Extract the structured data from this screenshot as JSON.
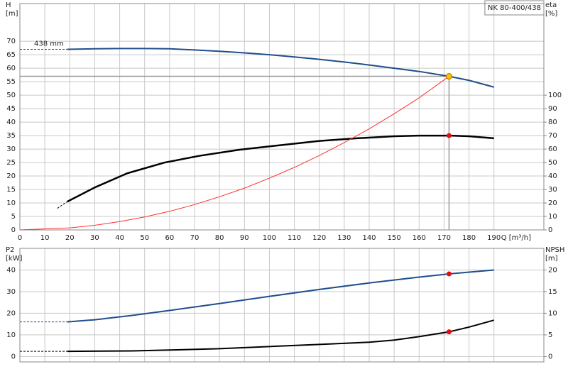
{
  "chart_data": [
    {
      "type": "line",
      "title": "NK 80-400/438",
      "ylabel": "H",
      "yunit": "[m]",
      "y2label": "eta",
      "y2unit": "[%]",
      "xlabel": "Q [m³/h]",
      "annotation": "438 mm",
      "xlim": [
        0,
        210
      ],
      "xticks": [
        0,
        10,
        20,
        30,
        40,
        50,
        60,
        70,
        80,
        90,
        100,
        110,
        120,
        130,
        140,
        150,
        160,
        170,
        180,
        190
      ],
      "ylim": [
        0,
        84
      ],
      "yticks": [
        0,
        5,
        10,
        15,
        20,
        25,
        30,
        35,
        40,
        45,
        50,
        55,
        60,
        65,
        70
      ],
      "y2lim": [
        0,
        168
      ],
      "y2ticks": [
        0,
        10,
        20,
        30,
        40,
        50,
        60,
        70,
        80,
        90,
        100
      ],
      "show_xtick_labels": true,
      "series": [
        {
          "color": "#1f4e8c",
          "width": 2,
          "x": [
            19,
            30,
            40,
            50,
            60,
            70,
            80,
            90,
            100,
            110,
            120,
            130,
            140,
            150,
            160,
            172,
            180,
            190
          ],
          "values": [
            67,
            67.2,
            67.3,
            67.3,
            67.2,
            66.8,
            66.3,
            65.7,
            65,
            64.2,
            63.3,
            62.3,
            61.2,
            60,
            58.8,
            57,
            55.5,
            53
          ]
        },
        {
          "color": "#1f4e8c",
          "width": 1,
          "dash": true,
          "x": [
            0,
            19
          ],
          "values": [
            67,
            67
          ]
        },
        {
          "color": "#000000",
          "width": 2.5,
          "axis": "y2",
          "x": [
            19,
            30,
            43,
            58,
            72,
            88,
            105,
            120,
            135,
            150,
            160,
            172,
            180,
            190
          ],
          "values": [
            21,
            31.5,
            42,
            50,
            55,
            59.5,
            63,
            66,
            68,
            69.5,
            70,
            70,
            69.5,
            68
          ]
        },
        {
          "color": "#000000",
          "width": 1,
          "dash": true,
          "axis": "y2",
          "x": [
            15,
            19
          ],
          "values": [
            16,
            21
          ]
        },
        {
          "color": "#ff3030",
          "width": 1,
          "x": [
            0,
            20,
            30,
            40,
            50,
            60,
            70,
            80,
            90,
            100,
            110,
            120,
            130,
            140,
            150,
            160,
            172
          ],
          "values": [
            0,
            0.77,
            1.7,
            3.1,
            4.8,
            6.9,
            9.4,
            12.3,
            15.5,
            19.2,
            23.2,
            27.6,
            32.4,
            37.5,
            43.1,
            49,
            57
          ]
        }
      ],
      "operating_point": {
        "x": 172,
        "y": 57,
        "color": "#f5c400"
      },
      "markers": [
        {
          "x": 172,
          "y": 70,
          "axis": "y2",
          "color": "#e01010"
        }
      ]
    },
    {
      "type": "line",
      "ylabel": "P2",
      "yunit": "[kW]",
      "y2label": "NPSH",
      "y2unit": "[m]",
      "xlim": [
        0,
        210
      ],
      "xticks": [
        0,
        10,
        20,
        30,
        40,
        50,
        60,
        70,
        80,
        90,
        100,
        110,
        120,
        130,
        140,
        150,
        160,
        170,
        180,
        190
      ],
      "ylim": [
        -2.5,
        50
      ],
      "yticks": [
        0,
        10,
        20,
        30,
        40
      ],
      "y2lim": [
        -1.25,
        25
      ],
      "y2ticks": [
        0,
        5,
        10,
        15,
        20
      ],
      "show_xtick_labels": false,
      "series": [
        {
          "color": "#1f4e8c",
          "width": 2,
          "x": [
            19,
            30,
            45,
            60,
            80,
            100,
            120,
            140,
            160,
            172,
            190
          ],
          "values": [
            16,
            17,
            19,
            21.3,
            24.5,
            27.8,
            31,
            34,
            36.7,
            38.2,
            40
          ]
        },
        {
          "color": "#1f4e8c",
          "width": 1,
          "dash": true,
          "x": [
            0,
            19
          ],
          "values": [
            16,
            16
          ]
        },
        {
          "color": "#000000",
          "width": 2,
          "axis": "y2",
          "x": [
            19,
            45,
            60,
            80,
            100,
            120,
            140,
            150,
            160,
            172,
            180,
            190
          ],
          "values": [
            1.2,
            1.3,
            1.5,
            1.8,
            2.3,
            2.8,
            3.3,
            3.8,
            4.6,
            5.7,
            6.8,
            8.4
          ]
        },
        {
          "color": "#000000",
          "width": 1,
          "dash": true,
          "axis": "y2",
          "x": [
            0,
            19
          ],
          "values": [
            1.2,
            1.2
          ]
        }
      ],
      "markers": [
        {
          "x": 172,
          "y": 38.2,
          "color": "#e01010"
        },
        {
          "x": 172,
          "y": 5.7,
          "axis": "y2",
          "color": "#e01010"
        }
      ]
    }
  ]
}
